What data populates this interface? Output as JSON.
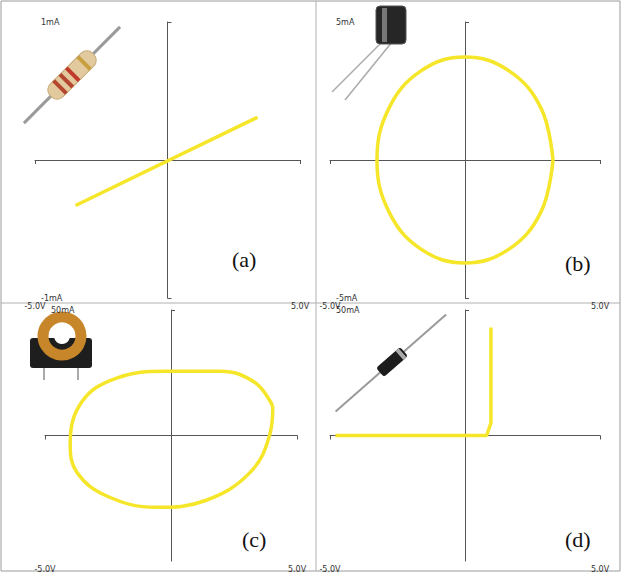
{
  "chart_data": [
    {
      "type": "line",
      "title": "(a)",
      "color": "#f5e62a",
      "x": [
        -3.47,
        3.4
      ],
      "values": [
        -0.33,
        0.31
      ],
      "xlim": [
        -5,
        5
      ],
      "xticks": [
        {
          "value": -5,
          "label": "-5.0V"
        },
        {
          "value": 5,
          "label": "5.0V"
        }
      ],
      "ylim": [
        -1,
        1
      ],
      "yticks": [
        {
          "value": -1,
          "label": "-1mA"
        },
        {
          "value": 1,
          "label": "1mA"
        }
      ]
    },
    {
      "type": "line",
      "title": "(b)",
      "color": "#f5e62a",
      "x": [
        3.26,
        2.82,
        1.63,
        0,
        -1.63,
        -2.82,
        -3.26,
        -2.82,
        -1.63,
        0,
        1.63,
        2.82,
        3.26
      ],
      "values": [
        0,
        1.87,
        3.23,
        3.73,
        3.23,
        1.87,
        0,
        -1.87,
        -3.23,
        -3.73,
        -3.23,
        -1.87,
        0
      ],
      "xlim": [
        -5,
        5
      ],
      "xticks": [
        {
          "value": -5,
          "label": "-5.0V"
        },
        {
          "value": 5,
          "label": "5.0V"
        }
      ],
      "ylim": [
        -5,
        5
      ],
      "yticks": [
        {
          "value": -5,
          "label": "-5mA"
        },
        {
          "value": 5,
          "label": "5mA"
        }
      ]
    },
    {
      "type": "line",
      "title": "(c)",
      "color": "#f5e62a",
      "x": [
        4.04,
        3.33,
        1.96,
        -0.2,
        -2.16,
        -3.53,
        -4.0,
        -3.73,
        -2.55,
        -0.59,
        1.37,
        3.14,
        3.92,
        4.04
      ],
      "values": [
        11.7,
        21.1,
        25.6,
        25.6,
        22.9,
        13.5,
        -3.4,
        -14.7,
        -24.1,
        -28.6,
        -25.9,
        -14.7,
        0.4,
        11.7
      ],
      "xlim": [
        -5,
        5
      ],
      "xticks": [
        {
          "value": -5,
          "label": "-5.0V"
        },
        {
          "value": 5,
          "label": "5.0V"
        }
      ],
      "ylim": [
        -50,
        50
      ],
      "yticks": [
        {
          "value": 50,
          "label": "50mA"
        }
      ]
    },
    {
      "type": "line",
      "title": "(d)",
      "color": "#f5e62a",
      "x": [
        -4.8,
        0.8,
        0.96,
        0.96
      ],
      "values": [
        0,
        0,
        5,
        43
      ],
      "xlim": [
        -5,
        5
      ],
      "xticks": [
        {
          "value": -5,
          "label": "-5.0V"
        },
        {
          "value": 5,
          "label": "5.0V"
        }
      ],
      "ylim": [
        -50,
        50
      ],
      "yticks": [
        {
          "value": 50,
          "label": "50mA"
        }
      ]
    }
  ]
}
